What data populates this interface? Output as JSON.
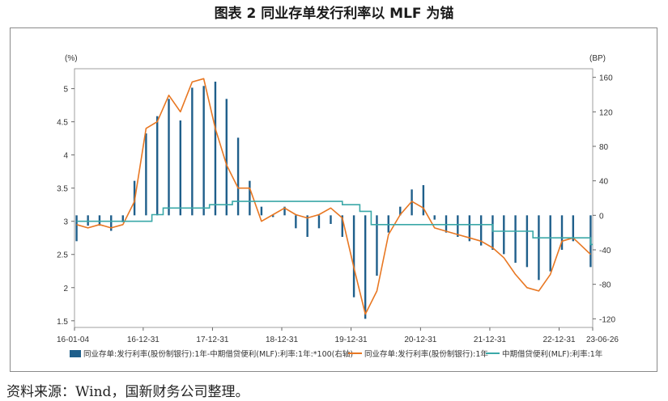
{
  "title": "图表 2 同业存单发行利率以 MLF 为锚",
  "source": "资料来源：Wind，国新财务公司整理。",
  "chart_data": {
    "type": "line",
    "left_unit": "(%)",
    "right_unit": "(BP)",
    "left_ticks": [
      "5",
      "4.5",
      "4",
      "3.5",
      "3",
      "2.5",
      "2",
      "1.5"
    ],
    "right_ticks": [
      "160",
      "120",
      "80",
      "40",
      "0",
      "-40",
      "-80",
      "-120"
    ],
    "ylim_left": [
      1.4,
      5.3
    ],
    "ylim_right": [
      -130,
      170
    ],
    "x_ticks": [
      "16-01-04",
      "16-12-31",
      "17-12-31",
      "18-12-31",
      "19-12-31",
      "20-12-31",
      "21-12-31",
      "22-12-31",
      "23-06-26"
    ],
    "x_range": [
      "2016-01-04",
      "2023-06-26"
    ],
    "colors": {
      "spread": "#1f5f8b",
      "ncd": "#e87722",
      "mlf": "#3aa8a8"
    },
    "series": [
      {
        "name": "同业存单:发行利率(股份制银行):1年-中期借贷便利(MLF):利率:1年:*100(右轴)",
        "axis": "right",
        "kind": "bar",
        "x": [
          "2016-01",
          "2016-03",
          "2016-05",
          "2016-07",
          "2016-09",
          "2016-11",
          "2017-01",
          "2017-03",
          "2017-05",
          "2017-07",
          "2017-09",
          "2017-11",
          "2018-01",
          "2018-03",
          "2018-05",
          "2018-07",
          "2018-09",
          "2018-11",
          "2019-01",
          "2019-03",
          "2019-05",
          "2019-07",
          "2019-09",
          "2019-11",
          "2020-01",
          "2020-03",
          "2020-05",
          "2020-07",
          "2020-09",
          "2020-11",
          "2021-01",
          "2021-03",
          "2021-05",
          "2021-07",
          "2021-09",
          "2021-11",
          "2022-01",
          "2022-03",
          "2022-05",
          "2022-07",
          "2022-09",
          "2022-11",
          "2023-01",
          "2023-03",
          "2023-06"
        ],
        "values": [
          -30,
          -12,
          -12,
          -18,
          -8,
          40,
          95,
          115,
          135,
          110,
          148,
          150,
          155,
          135,
          90,
          40,
          10,
          -2,
          10,
          -15,
          -25,
          -15,
          -10,
          -25,
          -95,
          -120,
          -70,
          -20,
          10,
          30,
          35,
          -5,
          -20,
          -25,
          -30,
          -35,
          -40,
          -45,
          -55,
          -60,
          -75,
          -65,
          -40,
          -30,
          -60
        ]
      },
      {
        "name": "同业存单:发行利率(股份制银行):1年",
        "axis": "left",
        "kind": "line",
        "x": [
          "2016-01",
          "2016-03",
          "2016-05",
          "2016-07",
          "2016-09",
          "2016-11",
          "2017-01",
          "2017-03",
          "2017-05",
          "2017-07",
          "2017-09",
          "2017-11",
          "2018-01",
          "2018-03",
          "2018-05",
          "2018-07",
          "2018-09",
          "2018-11",
          "2019-01",
          "2019-03",
          "2019-05",
          "2019-07",
          "2019-09",
          "2019-11",
          "2020-01",
          "2020-03",
          "2020-05",
          "2020-07",
          "2020-09",
          "2020-11",
          "2021-01",
          "2021-03",
          "2021-05",
          "2021-07",
          "2021-09",
          "2021-11",
          "2022-01",
          "2022-03",
          "2022-05",
          "2022-07",
          "2022-09",
          "2022-11",
          "2023-01",
          "2023-03",
          "2023-06"
        ],
        "values": [
          2.95,
          2.9,
          2.95,
          2.9,
          2.95,
          3.3,
          4.4,
          4.5,
          4.9,
          4.65,
          5.1,
          5.15,
          4.4,
          3.85,
          3.5,
          3.5,
          3.0,
          3.1,
          3.2,
          3.1,
          3.05,
          3.1,
          3.2,
          3.05,
          2.3,
          1.6,
          1.95,
          2.8,
          3.1,
          3.3,
          3.2,
          2.9,
          2.85,
          2.8,
          2.75,
          2.7,
          2.6,
          2.45,
          2.2,
          2.0,
          1.95,
          2.2,
          2.7,
          2.75,
          2.5
        ]
      },
      {
        "name": "中期借贷便利(MLF):利率:1年",
        "axis": "left",
        "kind": "step",
        "x": [
          "2016-01",
          "2016-12",
          "2017-02",
          "2017-04",
          "2017-12",
          "2018-04",
          "2019-11",
          "2020-02",
          "2020-04",
          "2021-12",
          "2022-01",
          "2022-08",
          "2023-06"
        ],
        "values": [
          3.0,
          3.0,
          3.1,
          3.2,
          3.25,
          3.3,
          3.25,
          3.15,
          2.95,
          2.95,
          2.85,
          2.75,
          2.65
        ]
      }
    ],
    "legend_position": "bottom"
  }
}
